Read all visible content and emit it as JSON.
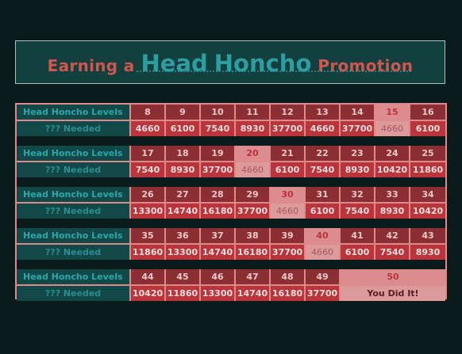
{
  "banner": {
    "w1": "Earning a",
    "w2": "Head",
    "w3": "Honcho",
    "w4": "Promotion"
  },
  "labels": {
    "levels": "Head Honcho Levels",
    "needed": "??? Needed"
  },
  "blocks": [
    {
      "levels": [
        "8",
        "9",
        "10",
        "11",
        "12",
        "13",
        "14",
        "15",
        "16"
      ],
      "amounts": [
        "4660",
        "6100",
        "7540",
        "8930",
        "37700",
        "4660",
        "37700",
        "4660",
        "6100"
      ],
      "highlight_index": 7
    },
    {
      "levels": [
        "17",
        "18",
        "19",
        "20",
        "21",
        "22",
        "23",
        "24",
        "25"
      ],
      "amounts": [
        "7540",
        "8930",
        "37700",
        "4660",
        "6100",
        "7540",
        "8930",
        "10420",
        "11860"
      ],
      "highlight_index": 3
    },
    {
      "levels": [
        "26",
        "27",
        "28",
        "29",
        "30",
        "31",
        "32",
        "33",
        "34"
      ],
      "amounts": [
        "13300",
        "14740",
        "16180",
        "37700",
        "4660",
        "6100",
        "7540",
        "8930",
        "10420"
      ],
      "highlight_index": 4
    },
    {
      "levels": [
        "35",
        "36",
        "37",
        "38",
        "39",
        "40",
        "41",
        "42",
        "43"
      ],
      "amounts": [
        "11860",
        "13300",
        "14740",
        "16180",
        "37700",
        "4660",
        "6100",
        "7540",
        "8930"
      ],
      "highlight_index": 5
    },
    {
      "levels": [
        "44",
        "45",
        "46",
        "47",
        "48",
        "49"
      ],
      "amounts": [
        "10420",
        "11860",
        "13300",
        "14740",
        "16180",
        "37700"
      ],
      "final_level": "50",
      "final_text": "You Did It!"
    }
  ]
}
